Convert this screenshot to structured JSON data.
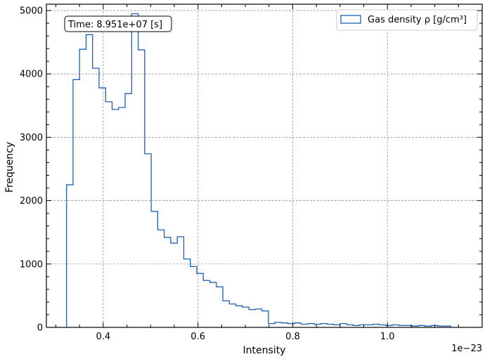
{
  "chart_data": {
    "type": "histogram",
    "title": "",
    "xlabel": "Intensity",
    "ylabel": "Frequency",
    "x_offset_label": "1e−23",
    "xlim": [
      0.28,
      1.2
    ],
    "ylim": [
      0,
      5100
    ],
    "xticks": [
      0.4,
      0.6,
      0.8,
      1.0
    ],
    "xtick_labels": [
      "0.4",
      "0.6",
      "0.8",
      "1.0"
    ],
    "yticks": [
      0,
      1000,
      2000,
      3000,
      4000,
      5000
    ],
    "ytick_labels": [
      "0",
      "1000",
      "2000",
      "3000",
      "4000",
      "5000"
    ],
    "grid": true,
    "legend": {
      "position": "top-right",
      "label": "Gas density ρ [g/cm³]"
    },
    "annotation": "Time: 8.951e+07 [s]",
    "line_color": "#1f5fb4",
    "bin_start": 0.3225,
    "bin_width": 0.01375,
    "values": [
      2250,
      3910,
      4390,
      4620,
      4090,
      3780,
      3560,
      3440,
      3470,
      3690,
      4950,
      4380,
      2740,
      1830,
      1540,
      1420,
      1330,
      1430,
      1080,
      960,
      850,
      740,
      710,
      640,
      420,
      370,
      340,
      320,
      280,
      290,
      260,
      60,
      80,
      70,
      60,
      70,
      50,
      60,
      50,
      60,
      50,
      40,
      60,
      40,
      30,
      40,
      40,
      50,
      40,
      30,
      40,
      30,
      30,
      20,
      30,
      20,
      30,
      20,
      20
    ]
  }
}
